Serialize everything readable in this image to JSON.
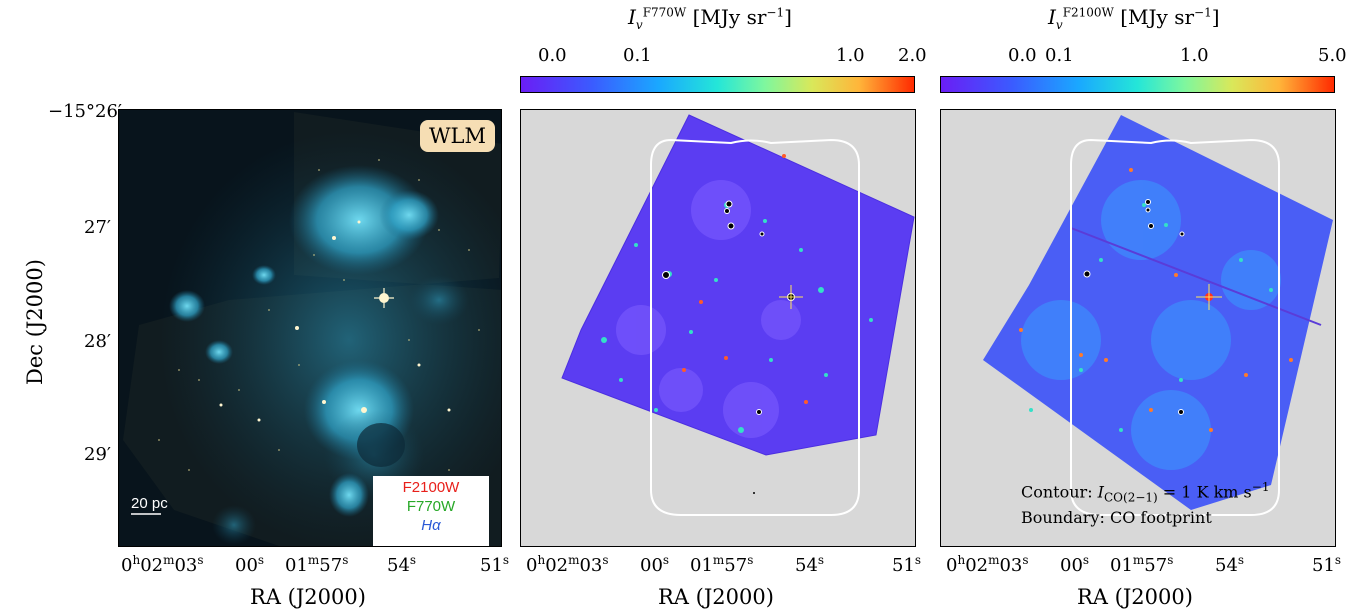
{
  "y_axis": {
    "label": "Dec (J2000)",
    "ticks": [
      "−15°26′",
      "27′",
      "28′",
      "29′"
    ]
  },
  "x_axis": {
    "label": "RA (J2000)",
    "ticks": [
      {
        "h": "0",
        "hs": "h",
        "m": "02",
        "ms": "m",
        "s": "03",
        "ss": "s"
      },
      {
        "s": "00",
        "ss": "s"
      },
      {
        "m": "01",
        "ms": "m",
        "s": "57",
        "ss": "s"
      },
      {
        "s": "54",
        "ss": "s"
      },
      {
        "s": "51",
        "ss": "s"
      }
    ]
  },
  "panel1": {
    "galaxy_label": "WLM",
    "scalebar_label": "20 pc",
    "legend": [
      {
        "text": "F2100W",
        "color": "#e8201b"
      },
      {
        "text": "F770W",
        "color": "#27a827"
      },
      {
        "text": "Hα",
        "color": "#2a59d6"
      }
    ]
  },
  "panel2": {
    "colorbar_title_main": "I",
    "colorbar_title_sub": "v",
    "colorbar_title_sup": "F770W",
    "colorbar_title_unit": "[MJy sr",
    "colorbar_title_unit_sup": "−1",
    "colorbar_title_close": "]",
    "colorbar_ticks": [
      "0.0",
      "0.1",
      "1.0",
      "2.0"
    ]
  },
  "panel3": {
    "colorbar_title_main": "I",
    "colorbar_title_sub": "v",
    "colorbar_title_sup": "F2100W",
    "colorbar_title_unit": "[MJy sr",
    "colorbar_title_unit_sup": "−1",
    "colorbar_title_close": "]",
    "colorbar_ticks": [
      "0.0",
      "0.1",
      "1.0",
      "5.0"
    ],
    "annotation_contour_prefix": "Contour: ",
    "annotation_contour_I": "I",
    "annotation_contour_sub": "CO(2−1)",
    "annotation_contour_value": " = 1 K km s",
    "annotation_contour_sup": "−1",
    "annotation_boundary": "Boundary: CO footprint"
  },
  "colors": {
    "background_panel": "#d8d8d8",
    "map_base": "#5a3cf0",
    "halpha": "#3ab6d6",
    "image_bg": "#08141c",
    "contour": "#ffffff"
  }
}
